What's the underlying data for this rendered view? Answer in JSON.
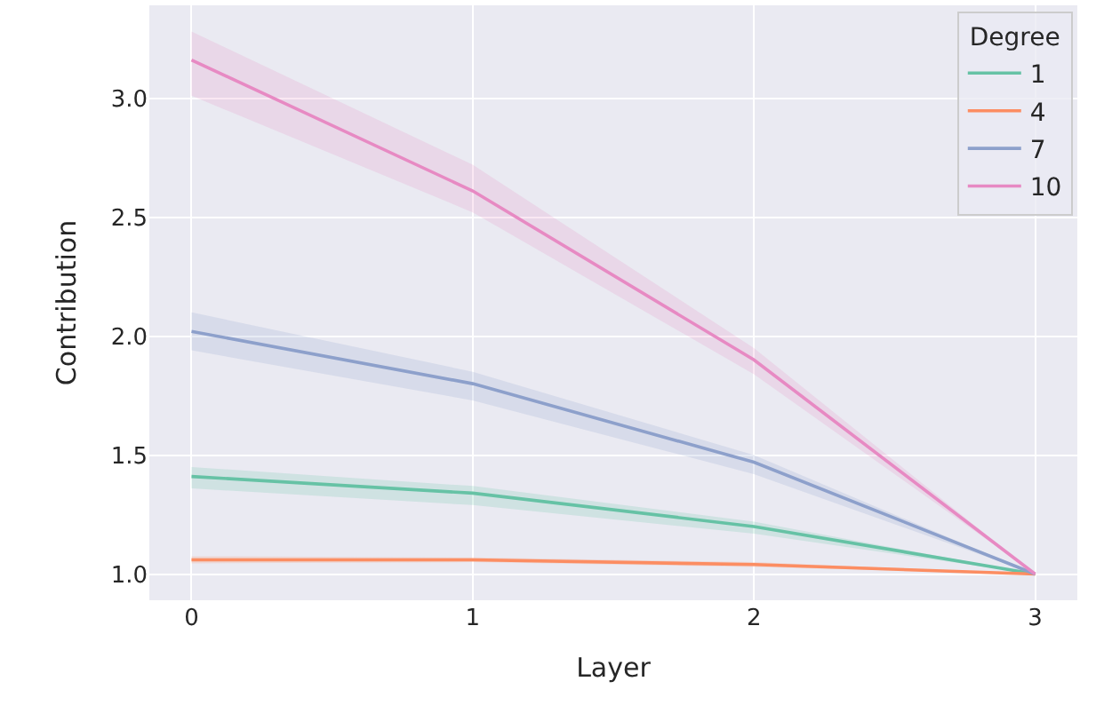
{
  "chart_data": {
    "type": "line",
    "xlabel": "Layer",
    "ylabel": "Contribution",
    "legend_title": "Degree",
    "legend": "top right",
    "grid": true,
    "x": [
      0,
      1,
      2,
      3
    ],
    "xlim": [
      -0.15,
      3.15
    ],
    "xticks": [
      0,
      1,
      2,
      3
    ],
    "ylim": [
      0.89,
      3.39
    ],
    "yticks": [
      {
        "value": 1,
        "label": "1.0"
      },
      1.5,
      {
        "value": 2,
        "label": "2.0"
      },
      2.5,
      {
        "value": 3,
        "label": "3.0"
      }
    ],
    "series": [
      {
        "name": "1",
        "color": "#66c2a5",
        "values": [
          1.41,
          1.34,
          1.2,
          1.0
        ],
        "lower": [
          1.36,
          1.29,
          1.17,
          1.0
        ],
        "upper": [
          1.45,
          1.37,
          1.22,
          1.0
        ]
      },
      {
        "name": "4",
        "color": "#fc8d62",
        "values": [
          1.06,
          1.06,
          1.04,
          1.0
        ],
        "lower": [
          1.045,
          1.05,
          1.03,
          1.0
        ],
        "upper": [
          1.075,
          1.07,
          1.05,
          1.0
        ]
      },
      {
        "name": "7",
        "color": "#8da0cb",
        "values": [
          2.02,
          1.8,
          1.47,
          1.0
        ],
        "lower": [
          1.94,
          1.73,
          1.42,
          1.0
        ],
        "upper": [
          2.1,
          1.85,
          1.5,
          1.0
        ]
      },
      {
        "name": "10",
        "color": "#e78ac3",
        "values": [
          3.16,
          2.61,
          1.9,
          1.0
        ],
        "lower": [
          3.01,
          2.52,
          1.84,
          1.0
        ],
        "upper": [
          3.28,
          2.72,
          1.95,
          1.0
        ]
      }
    ]
  }
}
